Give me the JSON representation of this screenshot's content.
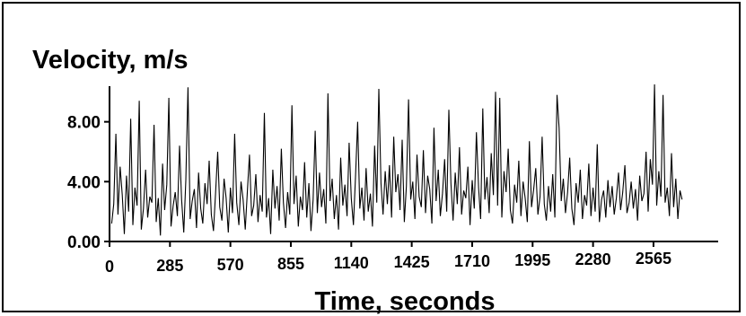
{
  "chart_data": {
    "type": "line",
    "title": "Velocity, m/s",
    "xlabel": "Time, seconds",
    "ylabel": "",
    "x_ticks": [
      0,
      285,
      570,
      855,
      1140,
      1425,
      1710,
      1995,
      2280,
      2565
    ],
    "x_tick_labels": [
      "0",
      "285",
      "570",
      "855",
      "1140",
      "1425",
      "1710",
      "1995",
      "2280",
      "2565"
    ],
    "y_ticks": [
      0,
      4,
      8
    ],
    "y_tick_labels": [
      "0.00",
      "4.00",
      "8.00"
    ],
    "xlim": [
      0,
      2870
    ],
    "ylim": [
      0,
      10.5
    ],
    "grid": false,
    "series": [
      {
        "sampling": "values sampled every 10 s starting at t = 10",
        "values": [
          1.2,
          2.5,
          7.2,
          1.8,
          5.0,
          3.1,
          0.5,
          4.4,
          2.0,
          8.2,
          1.1,
          3.6,
          2.4,
          9.4,
          0.8,
          2.2,
          4.8,
          1.6,
          3.0,
          2.6,
          7.8,
          1.3,
          2.9,
          0.4,
          5.2,
          2.1,
          3.8,
          9.6,
          1.0,
          2.4,
          3.3,
          1.7,
          6.4,
          2.8,
          0.6,
          4.1,
          10.3,
          1.5,
          2.7,
          3.5,
          0.9,
          4.6,
          2.2,
          1.2,
          3.9,
          2.5,
          5.4,
          1.8,
          0.7,
          3.2,
          6.0,
          2.3,
          1.4,
          4.2,
          2.9,
          0.6,
          3.6,
          1.9,
          7.2,
          2.6,
          1.1,
          4.0,
          2.8,
          0.8,
          3.4,
          5.8,
          1.7,
          2.4,
          4.5,
          1.3,
          3.1,
          2.0,
          8.6,
          1.6,
          2.9,
          0.5,
          4.8,
          2.2,
          3.7,
          1.4,
          6.2,
          2.6,
          0.9,
          3.3,
          1.8,
          9.1,
          2.5,
          4.4,
          1.0,
          3.0,
          2.1,
          5.3,
          1.6,
          3.9,
          0.7,
          2.8,
          7.4,
          1.9,
          4.6,
          2.3,
          3.5,
          1.2,
          9.9,
          2.7,
          4.2,
          1.5,
          3.1,
          0.8,
          5.6,
          2.4,
          3.8,
          1.7,
          6.6,
          2.9,
          1.1,
          4.3,
          8.0,
          2.2,
          3.6,
          1.4,
          4.9,
          2.0,
          3.2,
          1.0,
          6.4,
          2.6,
          10.2,
          3.9,
          1.8,
          4.7,
          2.5,
          5.1,
          1.6,
          7.0,
          3.3,
          4.5,
          2.1,
          6.8,
          1.3,
          3.7,
          9.5,
          2.8,
          4.0,
          1.5,
          5.8,
          3.0,
          2.3,
          6.1,
          1.9,
          4.4,
          3.5,
          1.2,
          7.6,
          2.7,
          4.8,
          1.7,
          3.2,
          5.5,
          2.0,
          8.8,
          3.9,
          1.4,
          4.6,
          2.5,
          6.3,
          1.8,
          3.4,
          2.9,
          5.0,
          1.1,
          4.1,
          2.2,
          7.3,
          3.6,
          1.5,
          8.9,
          2.8,
          4.3,
          1.9,
          5.9,
          3.1,
          10.0,
          2.4,
          9.6,
          1.6,
          4.7,
          3.3,
          6.2,
          2.1,
          1.2,
          3.8,
          2.6,
          5.4,
          1.7,
          4.0,
          2.9,
          1.3,
          6.7,
          2.3,
          3.5,
          4.9,
          1.8,
          3.0,
          7.0,
          2.5,
          1.4,
          3.7,
          2.0,
          4.5,
          1.6,
          9.8,
          7.6,
          2.7,
          4.2,
          1.9,
          3.3,
          5.6,
          2.2,
          1.1,
          3.9,
          2.6,
          4.8,
          1.5,
          3.1,
          2.4,
          5.2,
          1.7,
          3.6,
          2.0,
          6.5,
          1.3,
          2.8,
          3.4,
          1.6,
          4.1,
          2.3,
          3.7,
          1.8,
          2.9,
          4.6,
          2.1,
          3.3,
          5.1,
          1.9,
          2.6,
          4.0,
          2.2,
          3.5,
          1.4,
          4.4,
          2.7,
          3.2,
          6.0,
          2.0,
          5.5,
          3.8,
          10.5,
          2.4,
          4.7,
          3.0,
          9.8,
          2.6,
          3.6,
          1.7,
          5.9,
          2.3,
          4.2,
          1.5,
          3.4,
          2.8
        ]
      }
    ]
  }
}
